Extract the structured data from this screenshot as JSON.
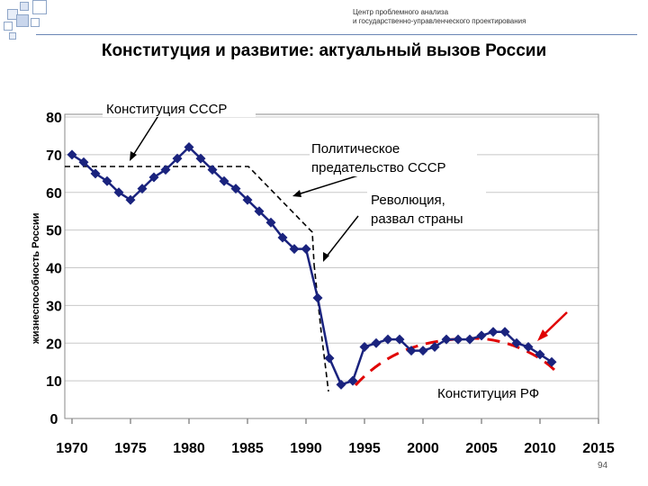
{
  "header": {
    "line1": "Центр проблемного анализа",
    "line2": "и государственно-управленческого проектирования"
  },
  "page_title": "Конституция и развитие: актуальный вызов России",
  "page_number": "94",
  "colors": {
    "series": "#1a237e",
    "dashed_annotation": "#000000",
    "forecast": "#e00000",
    "decor": "#8fa6c8"
  },
  "chart_data": {
    "type": "line",
    "title": "",
    "ylabel": "жизнеспособность России",
    "xlabel": "",
    "xlim": [
      1970,
      2015
    ],
    "ylim": [
      0,
      80
    ],
    "x_ticks": [
      1970,
      1975,
      1980,
      1985,
      1990,
      1995,
      2000,
      2005,
      2010,
      2015
    ],
    "y_ticks": [
      0,
      10,
      20,
      30,
      40,
      50,
      60,
      70,
      80
    ],
    "grid": true,
    "series": [
      {
        "x": [
          1970,
          1971,
          1972,
          1973,
          1974,
          1975,
          1976,
          1977,
          1978,
          1979,
          1980,
          1981,
          1982,
          1983,
          1984,
          1985,
          1986,
          1987,
          1988,
          1989,
          1990,
          1991,
          1992,
          1993,
          1994,
          1995,
          1996,
          1997,
          1998,
          1999,
          2000,
          2001,
          2002,
          2003,
          2004,
          2005,
          2006,
          2007,
          2008,
          2009,
          2010,
          2011
        ],
        "y": [
          70,
          68,
          65,
          63,
          60,
          58,
          61,
          64,
          66,
          69,
          72,
          69,
          66,
          63,
          61,
          58,
          55,
          52,
          48,
          45,
          45,
          32,
          16,
          9,
          10,
          19,
          20,
          21,
          21,
          18,
          18,
          19,
          21,
          21,
          21,
          22,
          23,
          23,
          20,
          19,
          17,
          15
        ]
      }
    ],
    "annotations": [
      {
        "text": "Конституция СССР"
      },
      {
        "text": "Политическое"
      },
      {
        "text": "предательство СССР"
      },
      {
        "text": "Революция,"
      },
      {
        "text": "развал страны"
      },
      {
        "text": "Конституция РФ"
      }
    ]
  }
}
